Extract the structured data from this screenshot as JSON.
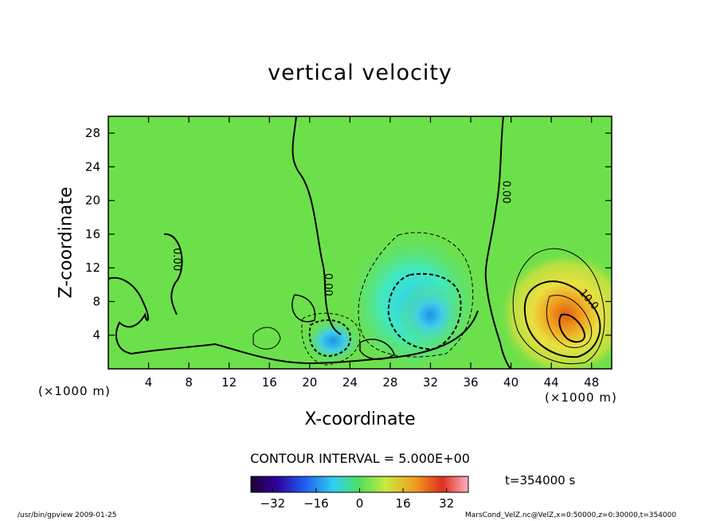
{
  "chart_data": {
    "type": "heatmap",
    "title": "vertical velocity",
    "xlabel": "X-coordinate",
    "ylabel": "Z-coordinate",
    "x_unit_label": "(×1000 m)",
    "xlim": [
      0,
      50
    ],
    "ylim": [
      0,
      30
    ],
    "x_ticks": [
      4,
      8,
      12,
      16,
      20,
      24,
      28,
      32,
      36,
      40,
      44,
      48
    ],
    "y_ticks": [
      4,
      8,
      12,
      16,
      20,
      24,
      28
    ],
    "contour_labels": [
      "0.00",
      "0.00",
      "0.00",
      "10.0"
    ],
    "contour_interval_text": "CONTOUR INTERVAL = 5.000E+00",
    "colorbar": {
      "min": -40,
      "max": 40,
      "ticks": [
        -32,
        -16,
        0,
        16,
        32
      ]
    },
    "time_label": "t=354000 s",
    "features": [
      {
        "kind": "updraft",
        "x": 45.5,
        "z": 5,
        "peak": 30
      },
      {
        "kind": "downdraft",
        "x": 31,
        "z": 7,
        "peak": -22
      },
      {
        "kind": "downdraft",
        "x": 22.5,
        "z": 2.5,
        "peak": -25
      }
    ]
  },
  "footer": {
    "left": "/usr/bin/gpview  2009-01-25",
    "right": "MarsCond_VelZ.nc@VelZ,x=0:50000,z=0:30000,t=354000"
  },
  "colors": {
    "background": "#6ce04a"
  }
}
